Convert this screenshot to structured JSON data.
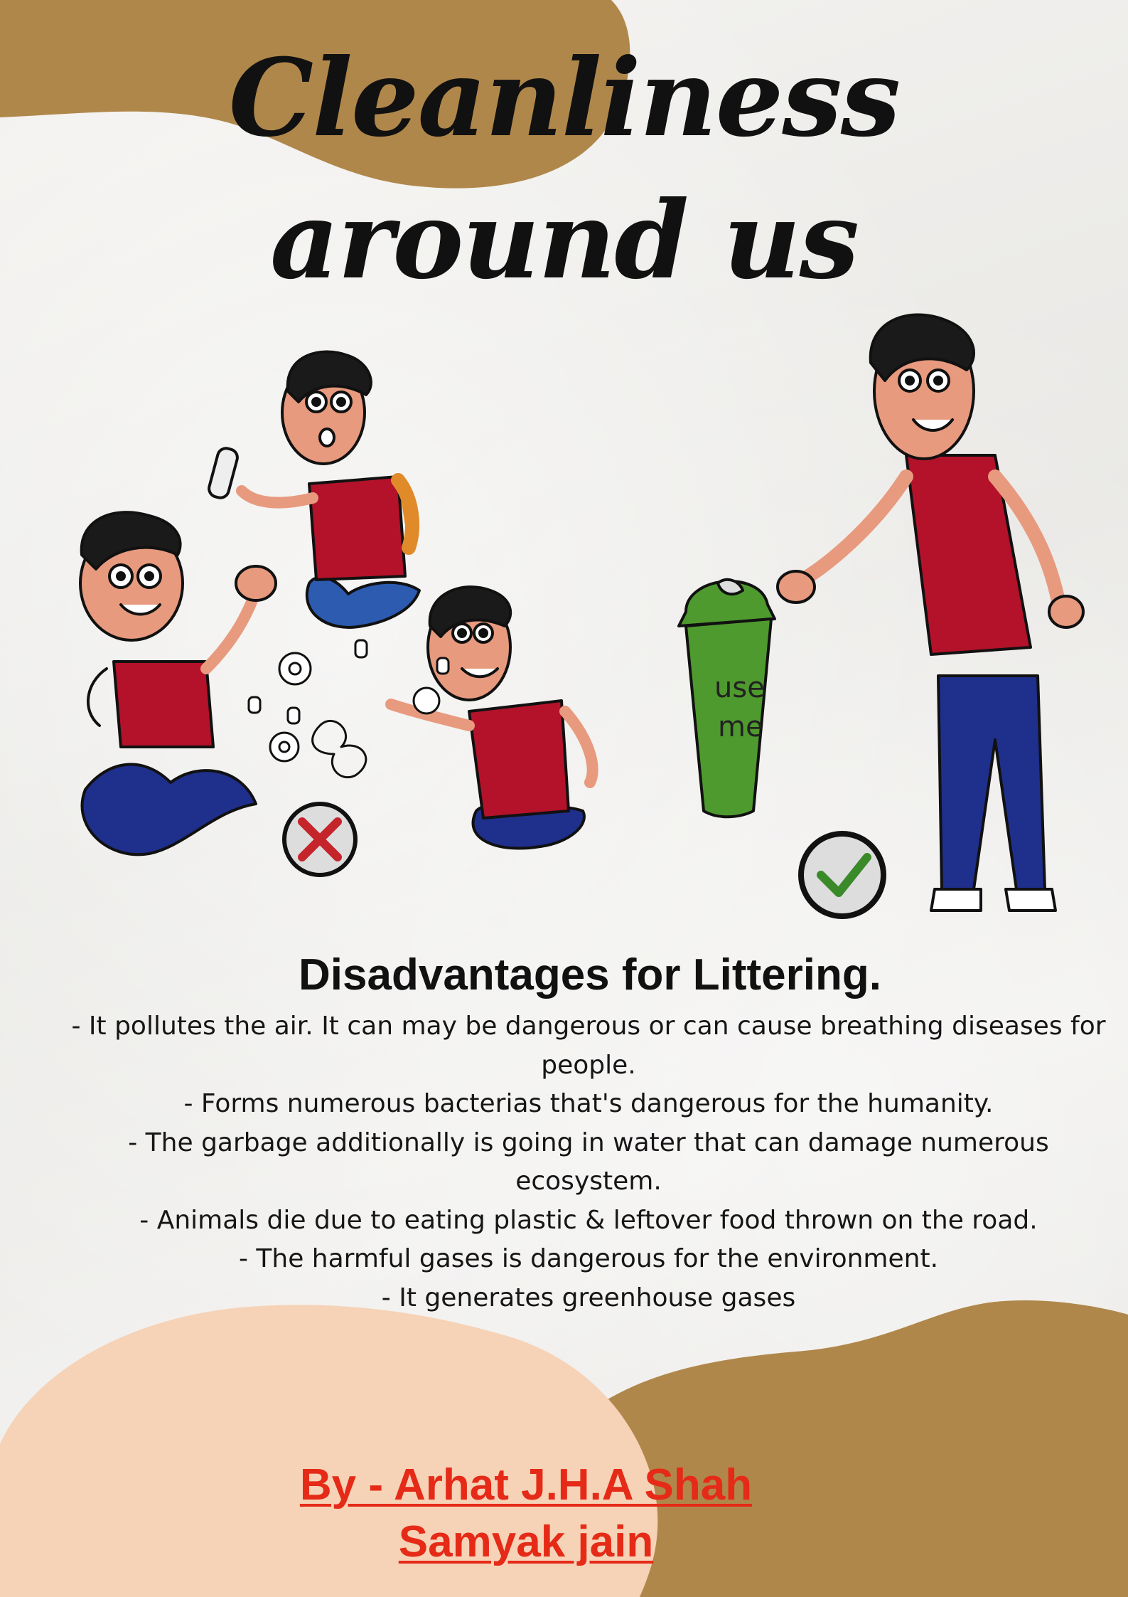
{
  "title": {
    "line1": "Cleanliness",
    "line2": "around us"
  },
  "section": {
    "heading": "Disadvantages for Littering.",
    "points": [
      "- It pollutes the air. It can may be dangerous or can cause breathing diseases for people.",
      "- Forms numerous bacterias that's dangerous for the humanity.",
      "- The garbage additionally is going in water that can damage numerous ecosystem.",
      "- Animals die due to eating plastic & leftover food thrown on the road.",
      "- The harmful gases is dangerous for the environment.",
      "- It generates greenhouse gases"
    ]
  },
  "illustration": {
    "bin_label_line1": "use",
    "bin_label_line2": "me",
    "wrong_icon": "cross-mark-icon",
    "right_icon": "check-mark-icon"
  },
  "credits": {
    "line1": "By - Arhat J.H.A Shah ",
    "line2": "Samyak jain"
  },
  "colors": {
    "brown": "#b0874a",
    "peach": "#f6d2b6",
    "red_text": "#e52a17",
    "shirt_red": "#b3122a",
    "pants_blue": "#1f2f8c",
    "bin_green": "#4e9a2e"
  }
}
